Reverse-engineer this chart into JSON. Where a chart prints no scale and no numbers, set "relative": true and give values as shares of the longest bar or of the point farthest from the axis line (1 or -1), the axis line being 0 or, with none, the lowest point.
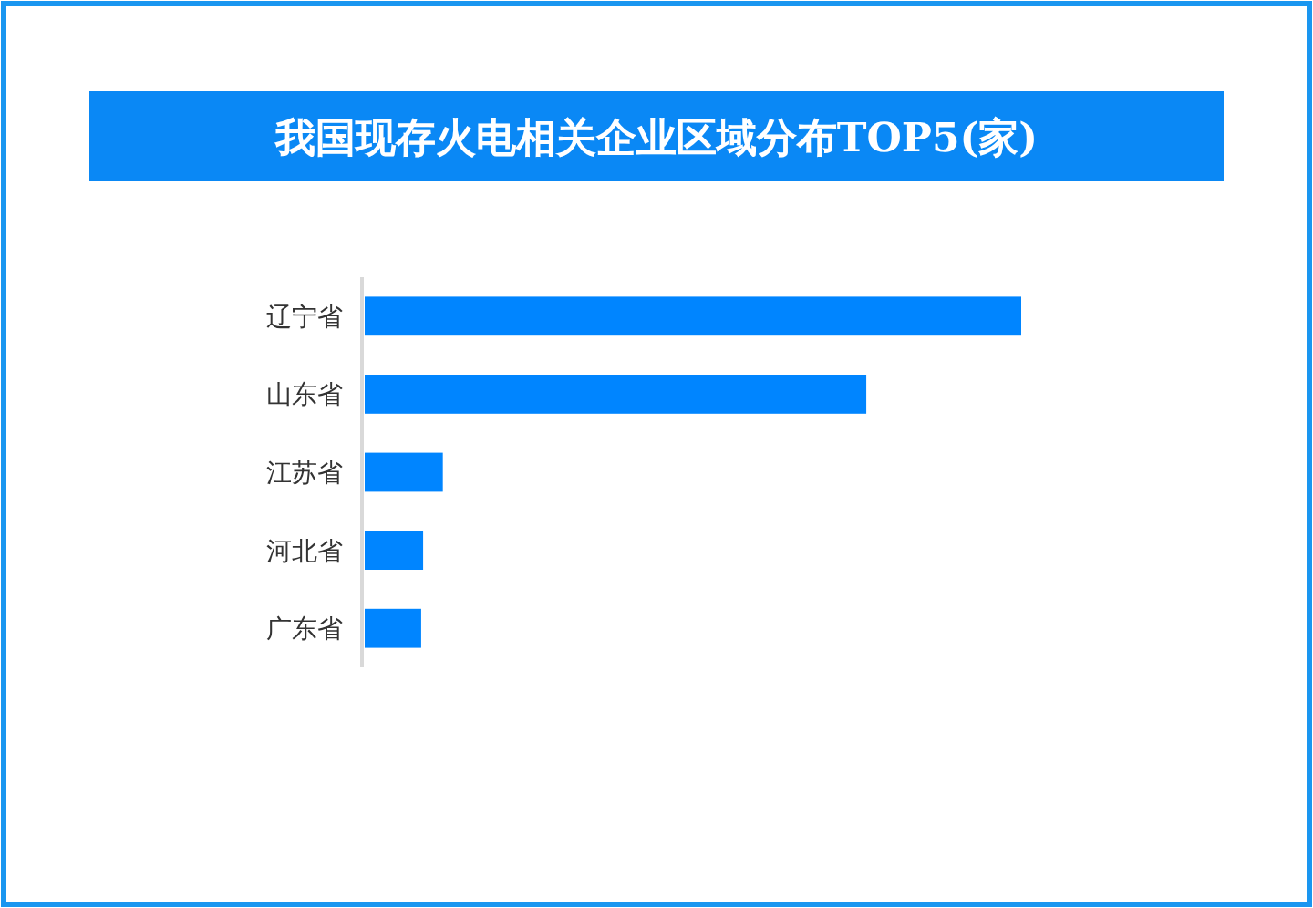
{
  "chart_data": {
    "type": "bar",
    "orientation": "horizontal",
    "relative": true,
    "title": "我国现存火电相关企业区域分布TOP5(家)",
    "categories": [
      "辽宁省",
      "山东省",
      "江苏省",
      "河北省",
      "广东省"
    ],
    "values": [
      1,
      0.764,
      0.119,
      0.089,
      0.086
    ],
    "color": "#0085ff"
  }
}
